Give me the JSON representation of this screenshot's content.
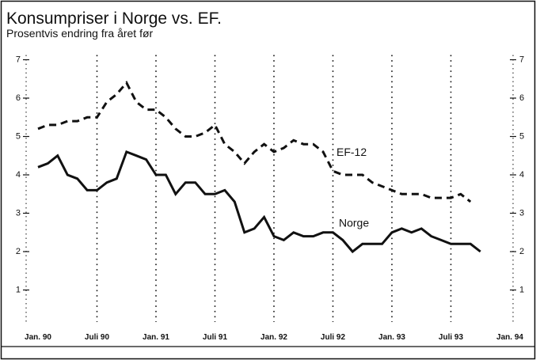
{
  "chart_data": {
    "type": "line",
    "title": "Konsumpriser i Norge vs. EF.",
    "subtitle": "Prosentvis endring fra året før",
    "categories": [
      "Jan. 90",
      null,
      null,
      null,
      null,
      null,
      "Juli 90",
      null,
      null,
      null,
      null,
      null,
      "Jan. 91",
      null,
      null,
      null,
      null,
      null,
      "Juli 91",
      null,
      null,
      null,
      null,
      null,
      "Jan. 92",
      null,
      null,
      null,
      null,
      null,
      "Juli 92",
      null,
      null,
      null,
      null,
      null,
      "Jan. 93",
      null,
      null,
      null,
      null,
      null,
      "Juli 93",
      null,
      null,
      null,
      null,
      null,
      "Jan. 94"
    ],
    "series": [
      {
        "name": "EF-12",
        "color": "#111111",
        "dashed": true,
        "values": [
          5.2,
          5.3,
          5.3,
          5.4,
          5.4,
          5.5,
          5.5,
          5.9,
          6.1,
          6.4,
          5.9,
          5.7,
          5.7,
          5.5,
          5.2,
          5.0,
          5.0,
          5.1,
          5.3,
          4.8,
          4.6,
          4.3,
          4.6,
          4.8,
          4.6,
          4.7,
          4.9,
          4.8,
          4.8,
          4.6,
          4.1,
          4.0,
          4.0,
          4.0,
          3.8,
          3.7,
          3.6,
          3.5,
          3.5,
          3.5,
          3.4,
          3.4,
          3.4,
          3.5,
          3.3,
          null,
          null,
          null,
          null
        ]
      },
      {
        "name": "Norge",
        "color": "#111111",
        "dashed": false,
        "values": [
          4.2,
          4.3,
          4.5,
          4.0,
          3.9,
          3.6,
          3.6,
          3.8,
          3.9,
          4.6,
          4.5,
          4.4,
          4.0,
          4.0,
          3.5,
          3.8,
          3.8,
          3.5,
          3.5,
          3.6,
          3.3,
          2.5,
          2.6,
          2.9,
          2.4,
          2.3,
          2.5,
          2.4,
          2.4,
          2.5,
          2.5,
          2.3,
          2.0,
          2.2,
          2.2,
          2.2,
          2.5,
          2.6,
          2.5,
          2.6,
          2.4,
          2.3,
          2.2,
          2.2,
          2.2,
          2.0,
          null,
          null,
          null
        ]
      }
    ],
    "ylim": [
      0,
      7
    ],
    "yticks": [
      1,
      2,
      3,
      4,
      5,
      6,
      7
    ]
  }
}
